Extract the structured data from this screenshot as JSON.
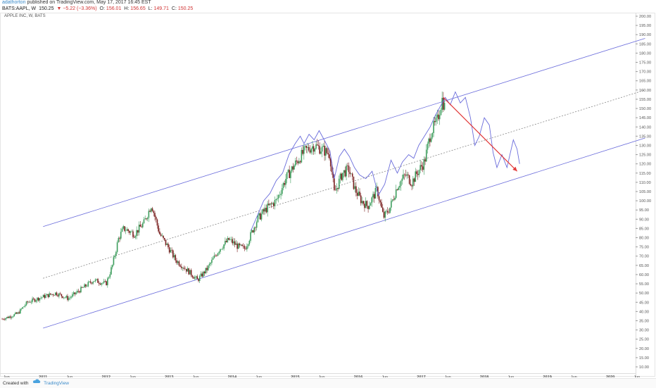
{
  "header": {
    "author": "adathorton",
    "published": "published on TradingView.com, May 17, 2017 16:45 EST",
    "symbol": "BATS:AAPL, W",
    "last": "150.25",
    "change": "▼ −5.22 (−3.36%)",
    "open_label": "O:",
    "open": "156.01",
    "high_label": "H:",
    "high": "156.65",
    "low_label": "L:",
    "low": "149.71",
    "close_label": "C:",
    "close": "150.25"
  },
  "chart_label": "APPLE INC, W, BATS",
  "footer": {
    "created_with": "Created with",
    "brand": "TradingView"
  },
  "colors": {
    "up": "#3c9d5c",
    "down": "#7a1f1f",
    "channel": "#6a6cdb",
    "projection": "#6a6cdb",
    "arrow": "#e23b3b",
    "axis_text": "#555555"
  },
  "chart_data": {
    "type": "candlestick",
    "y_axis": {
      "min": 10,
      "max": 200,
      "step": 5,
      "position": "right",
      "tick_labels": [
        "10.00",
        "15.00",
        "20.00",
        "25.00",
        "30.00",
        "35.00",
        "40.00",
        "45.00",
        "50.00",
        "55.00",
        "60.00",
        "65.00",
        "70.00",
        "75.00",
        "80.00",
        "85.00",
        "90.00",
        "95.00",
        "100.00",
        "105.00",
        "110.00",
        "115.00",
        "120.00",
        "125.00",
        "130.00",
        "135.00",
        "140.00",
        "145.00",
        "150.00",
        "155.00",
        "160.00",
        "165.00",
        "170.00",
        "175.00",
        "180.00",
        "185.00",
        "190.00",
        "195.00",
        "200.00"
      ]
    },
    "x_axis": {
      "start": 2010.35,
      "end": 2020.4,
      "ticks": [
        {
          "t": 2010.42,
          "label": "Jun"
        },
        {
          "t": 2011.0,
          "label": "2011"
        },
        {
          "t": 2011.42,
          "label": "Jun"
        },
        {
          "t": 2012.0,
          "label": "2012"
        },
        {
          "t": 2012.42,
          "label": "Jun"
        },
        {
          "t": 2013.0,
          "label": "2013"
        },
        {
          "t": 2013.42,
          "label": "Jun"
        },
        {
          "t": 2014.0,
          "label": "2014"
        },
        {
          "t": 2014.42,
          "label": "Jun"
        },
        {
          "t": 2015.0,
          "label": "2015"
        },
        {
          "t": 2015.42,
          "label": "Jun"
        },
        {
          "t": 2016.0,
          "label": "2016"
        },
        {
          "t": 2016.42,
          "label": "Jun"
        },
        {
          "t": 2017.0,
          "label": "2017"
        },
        {
          "t": 2017.42,
          "label": "Jun"
        },
        {
          "t": 2018.0,
          "label": "2018"
        },
        {
          "t": 2018.42,
          "label": "Jun"
        },
        {
          "t": 2019.0,
          "label": "2019"
        },
        {
          "t": 2019.42,
          "label": "Jun"
        },
        {
          "t": 2020.0,
          "label": "2020"
        },
        {
          "t": 2020.42,
          "label": "Jun"
        }
      ]
    },
    "closes_anchors": [
      [
        2010.35,
        36
      ],
      [
        2010.45,
        37
      ],
      [
        2010.6,
        39
      ],
      [
        2010.75,
        45
      ],
      [
        2011.0,
        48
      ],
      [
        2011.2,
        50
      ],
      [
        2011.4,
        47
      ],
      [
        2011.6,
        52
      ],
      [
        2011.8,
        57
      ],
      [
        2012.0,
        55
      ],
      [
        2012.1,
        65
      ],
      [
        2012.2,
        80
      ],
      [
        2012.28,
        85
      ],
      [
        2012.45,
        82
      ],
      [
        2012.6,
        88
      ],
      [
        2012.72,
        98
      ],
      [
        2012.85,
        82
      ],
      [
        2013.0,
        74
      ],
      [
        2013.1,
        68
      ],
      [
        2013.3,
        62
      ],
      [
        2013.45,
        57
      ],
      [
        2013.6,
        63
      ],
      [
        2013.8,
        74
      ],
      [
        2013.95,
        79
      ],
      [
        2014.1,
        75
      ],
      [
        2014.2,
        74
      ],
      [
        2014.4,
        90
      ],
      [
        2014.55,
        96
      ],
      [
        2014.7,
        100
      ],
      [
        2014.85,
        112
      ],
      [
        2015.0,
        120
      ],
      [
        2015.15,
        127
      ],
      [
        2015.3,
        130
      ],
      [
        2015.42,
        128
      ],
      [
        2015.55,
        125
      ],
      [
        2015.62,
        104
      ],
      [
        2015.75,
        115
      ],
      [
        2015.85,
        117
      ],
      [
        2015.95,
        106
      ],
      [
        2016.05,
        100
      ],
      [
        2016.15,
        97
      ],
      [
        2016.3,
        106
      ],
      [
        2016.4,
        91
      ],
      [
        2016.5,
        96
      ],
      [
        2016.62,
        108
      ],
      [
        2016.75,
        114
      ],
      [
        2016.85,
        110
      ],
      [
        2016.95,
        116
      ],
      [
        2017.05,
        121
      ],
      [
        2017.15,
        137
      ],
      [
        2017.25,
        143
      ],
      [
        2017.33,
        155
      ],
      [
        2017.38,
        150
      ]
    ],
    "series": [
      {
        "name": "",
        "type": "line",
        "role": "projection",
        "points": [
          [
            2014.3,
            84
          ],
          [
            2014.4,
            92
          ],
          [
            2014.5,
            100
          ],
          [
            2014.6,
            104
          ],
          [
            2014.7,
            111
          ],
          [
            2014.8,
            115
          ],
          [
            2014.9,
            125
          ],
          [
            2015.0,
            131
          ],
          [
            2015.08,
            135
          ],
          [
            2015.14,
            131
          ],
          [
            2015.22,
            136
          ],
          [
            2015.3,
            133
          ],
          [
            2015.38,
            138
          ],
          [
            2015.46,
            133
          ],
          [
            2015.55,
            127
          ],
          [
            2015.62,
            112
          ],
          [
            2015.7,
            124
          ],
          [
            2015.78,
            128
          ],
          [
            2015.86,
            124
          ],
          [
            2015.94,
            118
          ],
          [
            2016.02,
            114
          ],
          [
            2016.12,
            112
          ],
          [
            2016.22,
            116
          ],
          [
            2016.32,
            103
          ],
          [
            2016.42,
            109
          ],
          [
            2016.52,
            122
          ],
          [
            2016.62,
            115
          ],
          [
            2016.7,
            121
          ],
          [
            2016.8,
            125
          ],
          [
            2016.88,
            123
          ],
          [
            2016.96,
            130
          ],
          [
            2017.05,
            135
          ],
          [
            2017.14,
            140
          ],
          [
            2017.22,
            146
          ],
          [
            2017.3,
            151
          ],
          [
            2017.38,
            156
          ],
          [
            2017.46,
            152
          ],
          [
            2017.54,
            159
          ],
          [
            2017.62,
            153
          ],
          [
            2017.7,
            156
          ],
          [
            2017.78,
            145
          ],
          [
            2017.85,
            130
          ],
          [
            2017.92,
            135
          ],
          [
            2018.0,
            145
          ],
          [
            2018.08,
            141
          ],
          [
            2018.14,
            126
          ],
          [
            2018.2,
            118
          ],
          [
            2018.28,
            125
          ],
          [
            2018.36,
            118
          ],
          [
            2018.46,
            133
          ],
          [
            2018.52,
            128
          ],
          [
            2018.56,
            120
          ]
        ]
      }
    ],
    "channel": {
      "upper": [
        [
          2011.0,
          86
        ],
        [
          2020.55,
          188
        ]
      ],
      "middle": [
        [
          2011.0,
          58
        ],
        [
          2020.55,
          160
        ]
      ],
      "lower": [
        [
          2011.0,
          31
        ],
        [
          2020.55,
          134
        ]
      ]
    },
    "arrow": {
      "from": [
        2017.35,
        156
      ],
      "to": [
        2018.52,
        116
      ]
    }
  }
}
